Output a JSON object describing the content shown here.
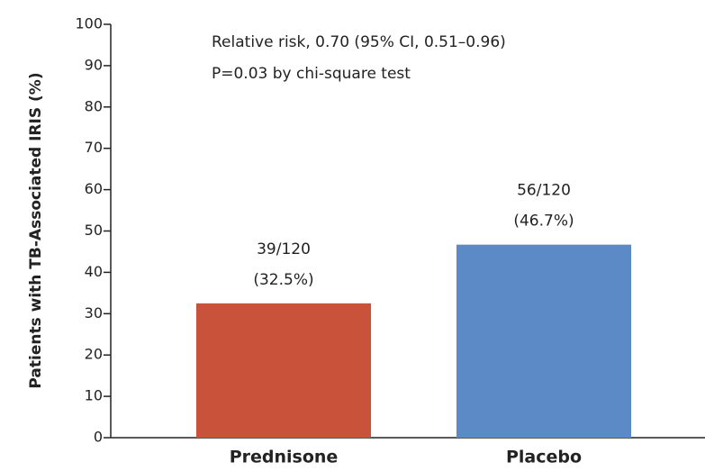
{
  "chart_data": {
    "type": "bar",
    "ylabel": "Patients with TB-Associated IRIS (%)",
    "annotations": [
      "Relative risk, 0.70 (95% CI, 0.51–0.96)",
      "P=0.03 by chi-square test"
    ],
    "categories": [
      "Prednisone",
      "Placebo"
    ],
    "values": [
      32.5,
      46.7
    ],
    "value_labels": [
      [
        "39/120",
        "(32.5%)"
      ],
      [
        "56/120",
        "(46.7%)"
      ]
    ],
    "colors": [
      "#c8523a",
      "#5b8ac6"
    ],
    "ylim": [
      0,
      100
    ],
    "yticks": [
      0,
      10,
      20,
      30,
      40,
      50,
      60,
      70,
      80,
      90,
      100
    ],
    "grid": false
  }
}
